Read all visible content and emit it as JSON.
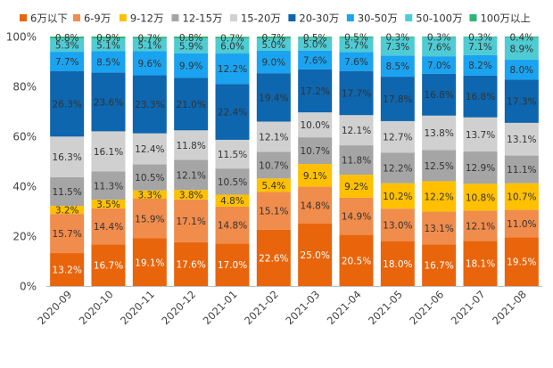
{
  "chart_data": {
    "type": "bar",
    "stacked": true,
    "categories": [
      "2020-09",
      "2020-10",
      "2020-11",
      "2020-12",
      "2021-01",
      "2021-02",
      "2021-03",
      "2021-04",
      "2021-05",
      "2021-06",
      "2021-07",
      "2021-08"
    ],
    "ylim": [
      0,
      100
    ],
    "yticks": [
      "0%",
      "20%",
      "40%",
      "60%",
      "80%",
      "100%"
    ],
    "grid": false,
    "legend_position": "top",
    "series": [
      {
        "name": "6万以下",
        "color": "#E8650C",
        "label_color": "#ffffff",
        "values": [
          13.2,
          16.7,
          19.1,
          17.6,
          17.0,
          22.6,
          25.0,
          20.5,
          18.0,
          16.7,
          18.1,
          19.5
        ]
      },
      {
        "name": "6-9万",
        "color": "#F08C4C",
        "label_color": "#333333",
        "values": [
          15.7,
          14.4,
          15.9,
          17.1,
          14.8,
          15.1,
          14.8,
          14.9,
          13.0,
          13.1,
          12.1,
          11.0
        ]
      },
      {
        "name": "9-12万",
        "color": "#FFC000",
        "label_color": "#333333",
        "values": [
          3.2,
          3.5,
          3.3,
          3.8,
          4.8,
          5.4,
          9.1,
          9.2,
          10.2,
          12.2,
          10.8,
          10.7
        ]
      },
      {
        "name": "12-15万",
        "color": "#A5A5A5",
        "label_color": "#333333",
        "values": [
          11.5,
          11.3,
          10.5,
          12.1,
          10.5,
          10.7,
          10.7,
          11.8,
          12.2,
          12.5,
          12.9,
          11.1
        ]
      },
      {
        "name": "15-20万",
        "color": "#D0D0D0",
        "label_color": "#333333",
        "values": [
          16.3,
          16.1,
          12.4,
          11.8,
          11.5,
          12.1,
          10.0,
          12.1,
          12.7,
          13.8,
          13.7,
          13.1
        ]
      },
      {
        "name": "20-30万",
        "color": "#0E66AE",
        "label_color": "#333333",
        "values": [
          26.3,
          23.6,
          23.3,
          21.0,
          22.4,
          19.4,
          17.2,
          17.7,
          17.8,
          16.8,
          16.8,
          17.3
        ]
      },
      {
        "name": "30-50万",
        "color": "#1AA3F0",
        "label_color": "#333333",
        "values": [
          7.7,
          8.5,
          9.6,
          9.9,
          12.2,
          9.0,
          7.6,
          7.6,
          8.5,
          7.0,
          8.2,
          8.0
        ]
      },
      {
        "name": "50-100万",
        "color": "#4FCBD3",
        "label_color": "#333333",
        "values": [
          5.3,
          5.1,
          5.1,
          5.9,
          6.0,
          5.0,
          5.0,
          5.7,
          7.3,
          7.6,
          7.1,
          8.9
        ]
      },
      {
        "name": "100万以上",
        "color": "#2BB673",
        "label_color": "#333333",
        "values": [
          0.8,
          0.9,
          0.7,
          0.8,
          0.7,
          0.7,
          0.5,
          0.5,
          0.3,
          0.3,
          0.3,
          0.4
        ]
      }
    ]
  }
}
